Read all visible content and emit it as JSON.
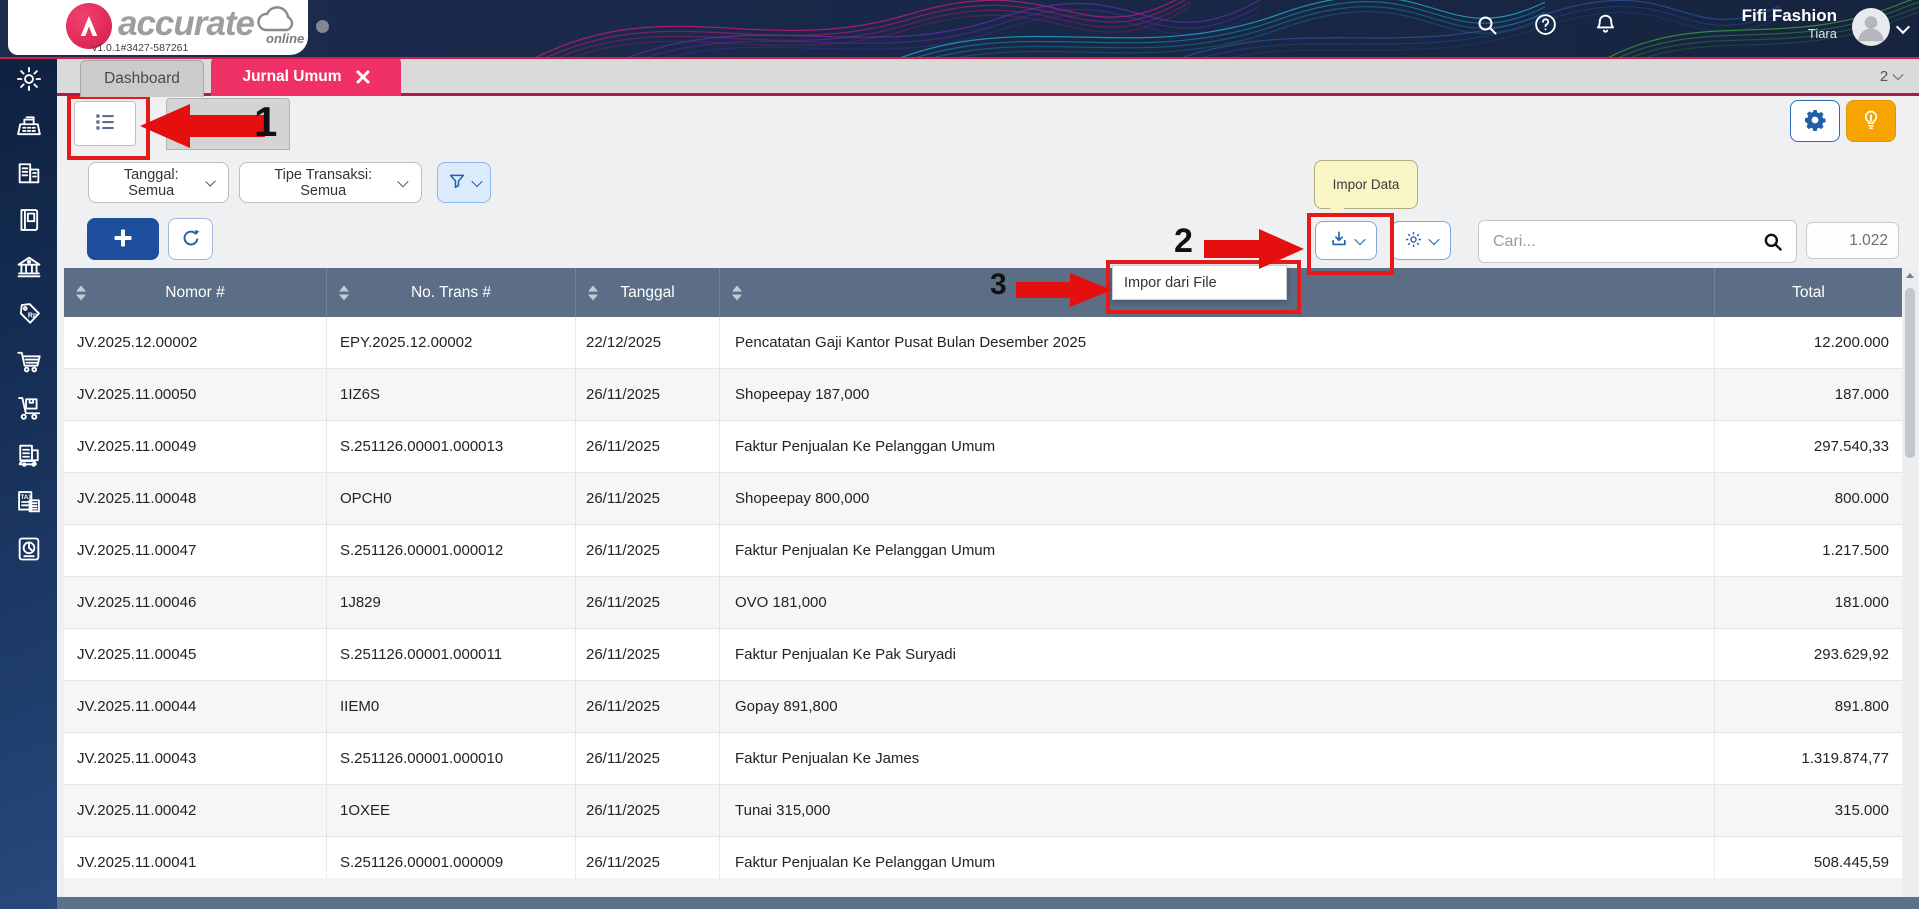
{
  "header": {
    "brand_name": "accurate",
    "brand_sub": "online",
    "version": "v1.0.1#3427-587261",
    "company": "Fifi Fashion",
    "user": "Tiara"
  },
  "tabs": {
    "dashboard": "Dashboard",
    "active": "Jurnal Umum",
    "open_count": "2"
  },
  "filters": {
    "tanggal": "Tanggal: Semua",
    "tipe_transaksi": "Tipe Transaksi: Semua"
  },
  "search": {
    "placeholder": "Cari...",
    "record_count": "1.022"
  },
  "tooltip": {
    "impor_data": "Impor Data"
  },
  "menu": {
    "impor_dari_file": "Impor dari File"
  },
  "annotations": {
    "step1": "1",
    "step2": "2",
    "step3": "3"
  },
  "colors": {
    "brand_pink": "#ef3168",
    "annotation_red": "#e51a1a",
    "accent_blue": "#1f62ae",
    "table_header_slate": "#5b6e86",
    "amber": "#f6a500",
    "tooltip_yellow": "#faf5c4",
    "sidebar_navy": "#16294d"
  },
  "sidebar": {
    "items": [
      {
        "icon": "settings-icon",
        "name": "settings"
      },
      {
        "icon": "cash-register-icon",
        "name": "cash-register"
      },
      {
        "icon": "company-icon",
        "name": "company"
      },
      {
        "icon": "ledger-icon",
        "name": "ledger"
      },
      {
        "icon": "bank-icon",
        "name": "bank"
      },
      {
        "icon": "sales-icon",
        "name": "sales"
      },
      {
        "icon": "purchases-icon",
        "name": "purchases"
      },
      {
        "icon": "inventory-icon",
        "name": "inventory"
      },
      {
        "icon": "assets-icon",
        "name": "assets"
      },
      {
        "icon": "tax-icon",
        "name": "tax"
      },
      {
        "icon": "reports-icon",
        "name": "reports"
      }
    ]
  },
  "table": {
    "headers": [
      "Nomor #",
      "No. Trans #",
      "Tanggal",
      "",
      "Total"
    ],
    "rows": [
      [
        "JV.2025.12.00002",
        "EPY.2025.12.00002",
        "22/12/2025",
        "Pencatatan Gaji Kantor Pusat Bulan Desember 2025",
        "12.200.000"
      ],
      [
        "JV.2025.11.00050",
        "1IZ6S",
        "26/11/2025",
        "Shopeepay 187,000",
        "187.000"
      ],
      [
        "JV.2025.11.00049",
        "S.251126.00001.000013",
        "26/11/2025",
        "Faktur Penjualan Ke Pelanggan Umum",
        "297.540,33"
      ],
      [
        "JV.2025.11.00048",
        "OPCH0",
        "26/11/2025",
        "Shopeepay 800,000",
        "800.000"
      ],
      [
        "JV.2025.11.00047",
        "S.251126.00001.000012",
        "26/11/2025",
        "Faktur Penjualan Ke Pelanggan Umum",
        "1.217.500"
      ],
      [
        "JV.2025.11.00046",
        "1J829",
        "26/11/2025",
        "OVO 181,000",
        "181.000"
      ],
      [
        "JV.2025.11.00045",
        "S.251126.00001.000011",
        "26/11/2025",
        "Faktur Penjualan Ke Pak Suryadi",
        "293.629,92"
      ],
      [
        "JV.2025.11.00044",
        "IIEM0",
        "26/11/2025",
        "Gopay 891,800",
        "891.800"
      ],
      [
        "JV.2025.11.00043",
        "S.251126.00001.000010",
        "26/11/2025",
        "Faktur Penjualan Ke James",
        "1.319.874,77"
      ],
      [
        "JV.2025.11.00042",
        "1OXEE",
        "26/11/2025",
        "Tunai 315,000",
        "315.000"
      ],
      [
        "JV.2025.11.00041",
        "S.251126.00001.000009",
        "26/11/2025",
        "Faktur Penjualan Ke Pelanggan Umum",
        "508.445,59"
      ]
    ]
  }
}
